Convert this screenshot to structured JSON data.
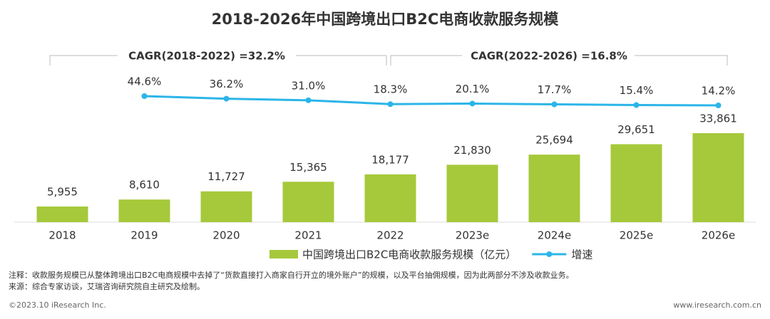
{
  "chart_data": {
    "type": "bar",
    "title": "2018-2026年中国跨境出口B2C电商收款服务规模",
    "categories": [
      "2018",
      "2019",
      "2020",
      "2021",
      "2022",
      "2023e",
      "2024e",
      "2025e",
      "2026e"
    ],
    "series": [
      {
        "name": "中国跨境出口B2C电商收款服务规模（亿元）",
        "color": "#a5c93a",
        "values": [
          5955,
          8610,
          11727,
          15365,
          18177,
          21830,
          25694,
          29651,
          33861
        ],
        "value_labels": [
          "5,955",
          "8,610",
          "11,727",
          "15,365",
          "18,177",
          "21,830",
          "25,694",
          "29,651",
          "33,861"
        ]
      },
      {
        "name": "增速",
        "type": "line",
        "color": "#2bb5e8",
        "values": [
          null,
          44.6,
          36.2,
          31.0,
          18.3,
          20.1,
          17.7,
          15.4,
          14.2
        ],
        "value_labels": [
          null,
          "44.6%",
          "36.2%",
          "31.0%",
          "18.3%",
          "20.1%",
          "17.7%",
          "15.4%",
          "14.2%"
        ]
      }
    ],
    "annotations": [
      "CAGR(2018-2022) =32.2%",
      "CAGR(2022-2026) =16.8%"
    ],
    "notes": [
      "注释：收款服务规模已从整体跨境出口B2C电商规模中去掉了“货款直接打入商家自行开立的境外账户”的规模，以及平台抽佣规模，因为此两部分不涉及收款业务。",
      "来源：综合专家访谈，艾瑞咨询研究院自主研究及绘制。"
    ],
    "footer": {
      "left": "©2023.10 iResearch Inc.",
      "right": "www.iresearch.com.cn"
    }
  }
}
